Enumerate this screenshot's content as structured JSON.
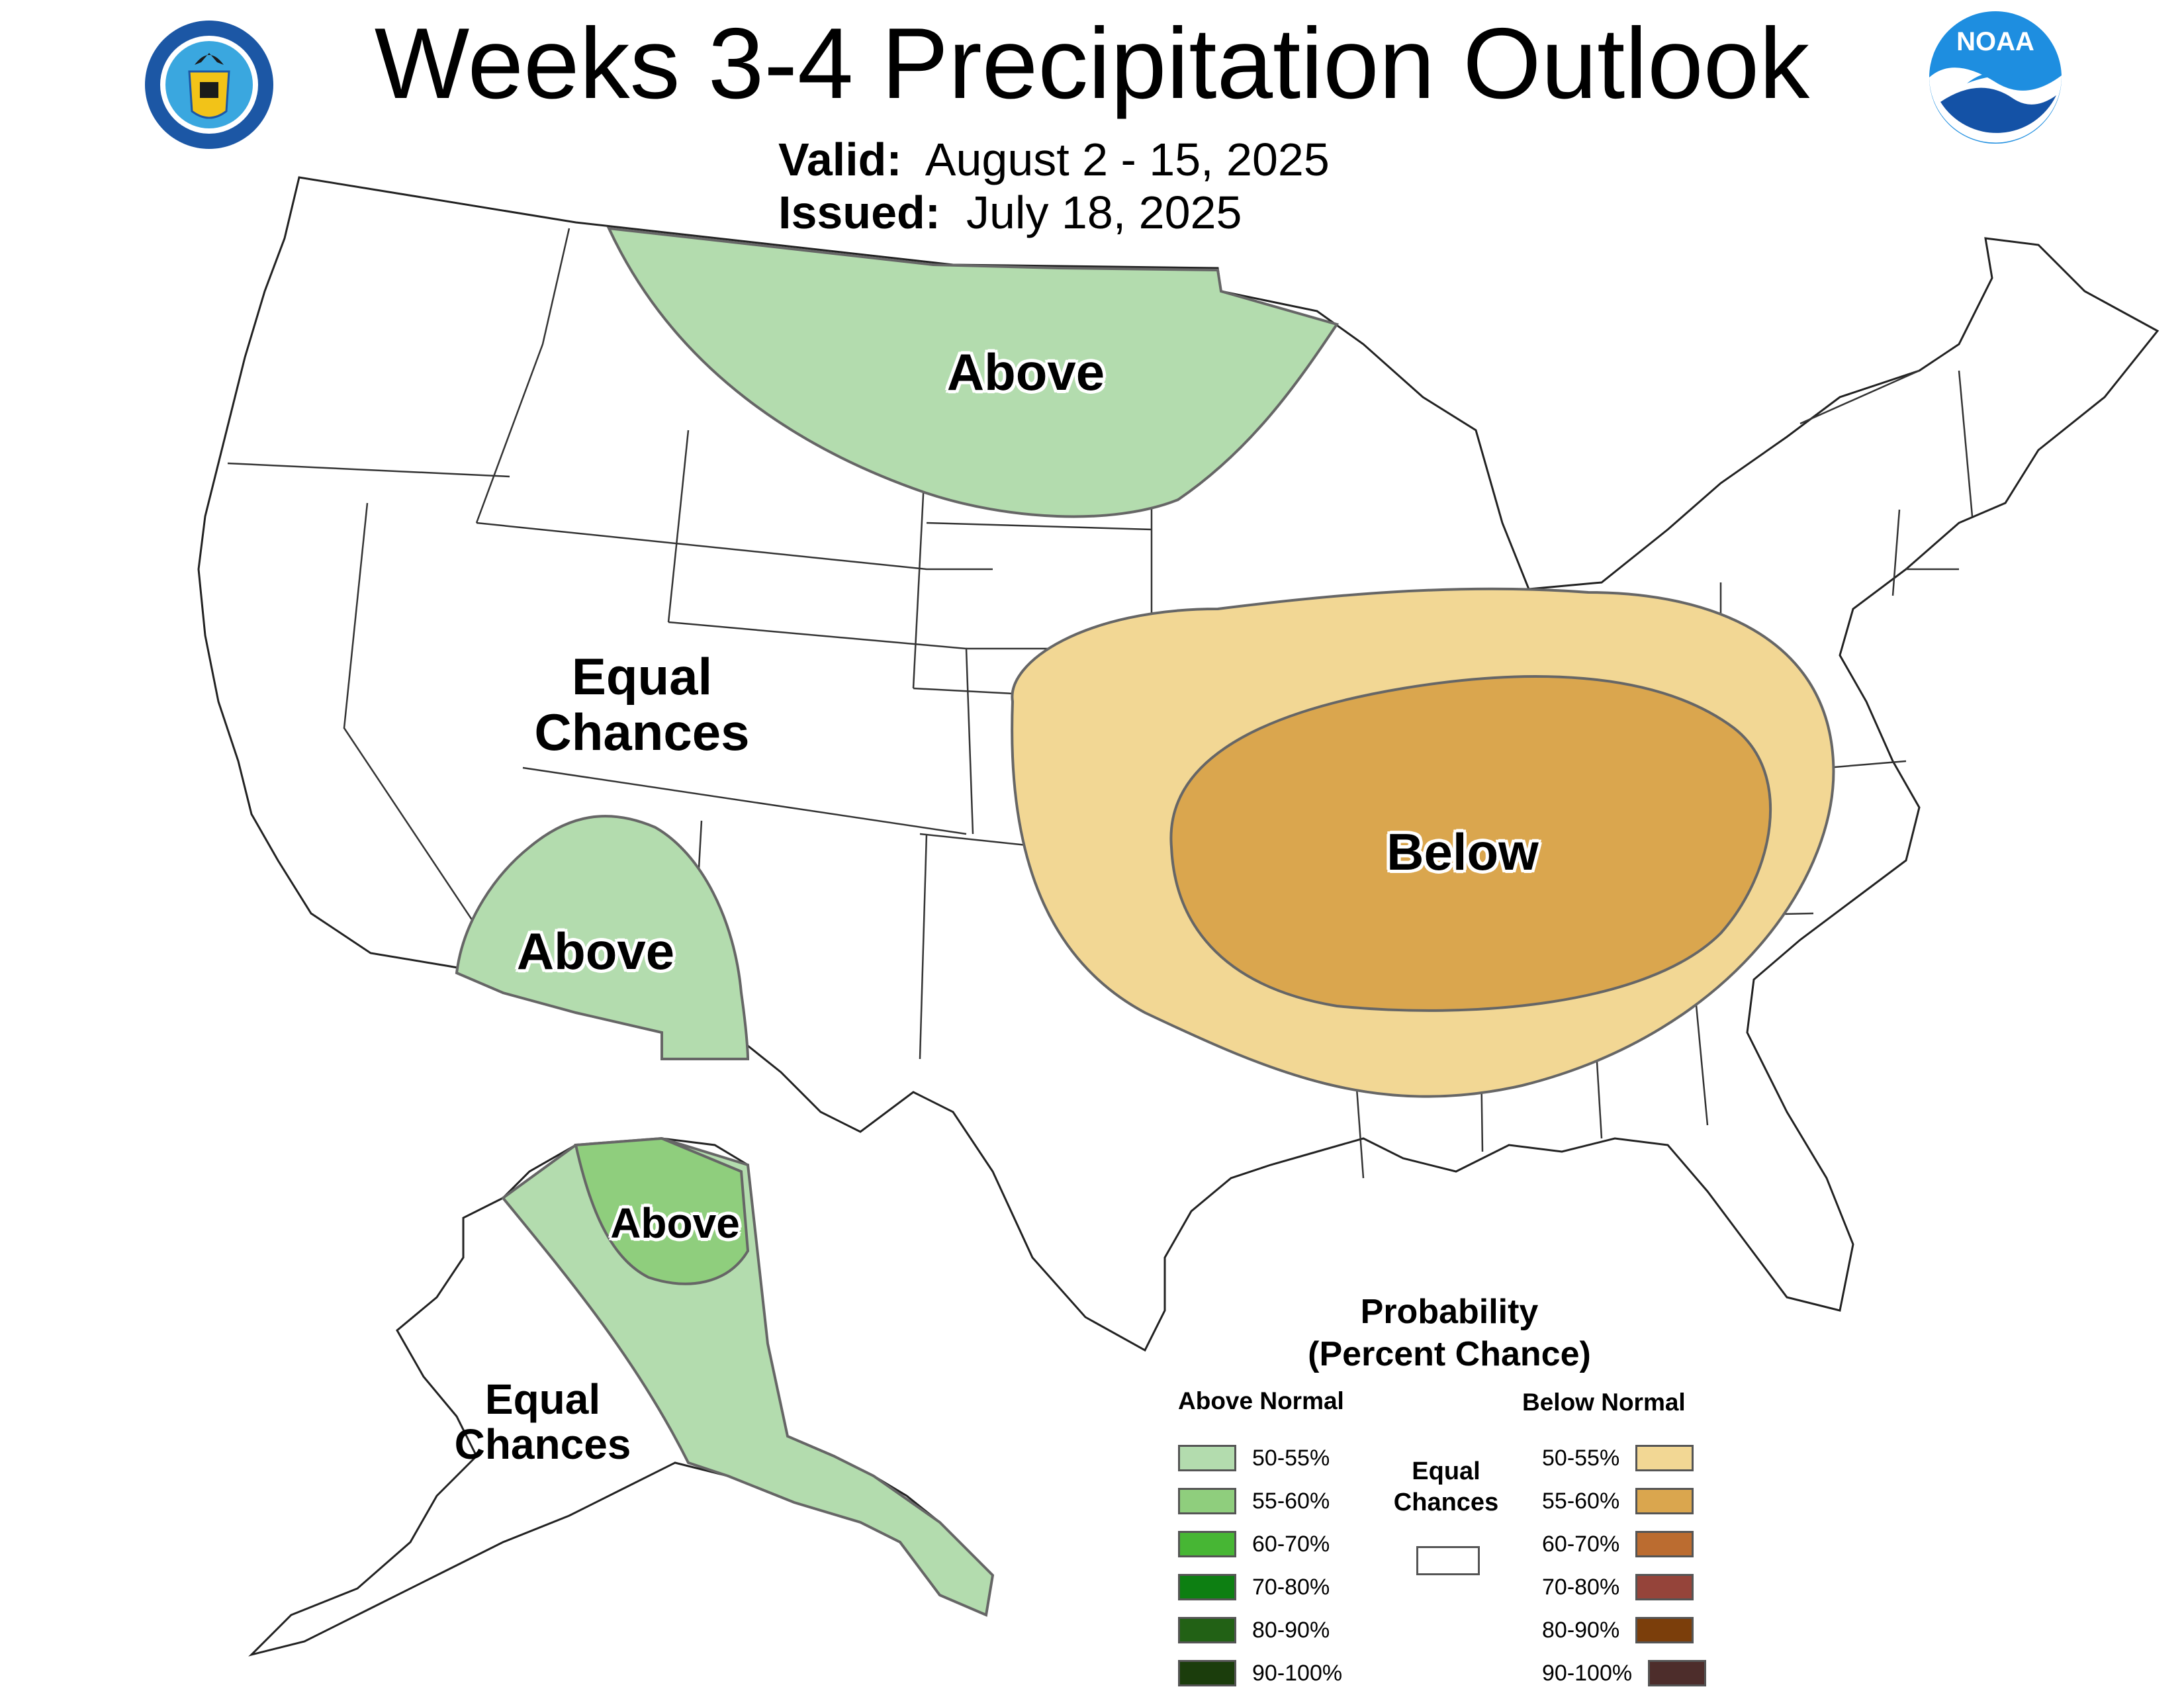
{
  "header": {
    "title": "Weeks 3-4 Precipitation Outlook",
    "valid_label": "Valid:",
    "valid_value": "August 2 - 15, 2025",
    "issued_label": "Issued:",
    "issued_value": "July 18, 2025"
  },
  "logos": {
    "commerce_seal_text": "DEPARTMENT OF COMMERCE · UNITED STATES OF AMERICA",
    "noaa_text": "NOAA"
  },
  "map_labels": {
    "north_plains": "Above",
    "southwest": "Above",
    "west_line1": "Equal",
    "west_line2": "Chances",
    "central": "Below",
    "alaska_north": "Above",
    "alaska_line1": "Equal",
    "alaska_line2": "Chances"
  },
  "legend": {
    "title_line1": "Probability",
    "title_line2": "(Percent Chance)",
    "above_header": "Above Normal",
    "below_header": "Below Normal",
    "ec_line1": "Equal",
    "ec_line2": "Chances",
    "above": [
      {
        "label": "50-55%",
        "color": "#b3dcae"
      },
      {
        "label": "55-60%",
        "color": "#8fce7d"
      },
      {
        "label": "60-70%",
        "color": "#47b634"
      },
      {
        "label": "70-80%",
        "color": "#0d7f12"
      },
      {
        "label": "80-90%",
        "color": "#226115"
      },
      {
        "label": "90-100%",
        "color": "#1b3d0c"
      }
    ],
    "below": [
      {
        "label": "50-55%",
        "color": "#f2d794"
      },
      {
        "label": "55-60%",
        "color": "#daa64e"
      },
      {
        "label": "60-70%",
        "color": "#bb6c30"
      },
      {
        "label": "70-80%",
        "color": "#95443a"
      },
      {
        "label": "80-90%",
        "color": "#7b3e0b"
      },
      {
        "label": "90-100%",
        "color": "#4d2d2b"
      }
    ],
    "ec_color": "#ffffff"
  }
}
